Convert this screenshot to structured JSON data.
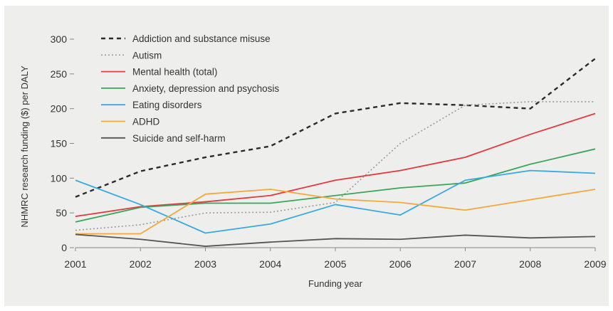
{
  "chart_data": {
    "type": "line",
    "title": "",
    "xlabel": "Funding year",
    "ylabel": "NHMRC research funding ($) per DALY",
    "x": [
      2001,
      2002,
      2003,
      2004,
      2005,
      2006,
      2007,
      2008,
      2009
    ],
    "xticks": [
      "2001",
      "2002",
      "2003",
      "2004",
      "2005",
      "2006",
      "2007",
      "2008",
      "2009"
    ],
    "yticks": [
      "0",
      "50",
      "100",
      "150",
      "200",
      "250",
      "300"
    ],
    "ylim": [
      0,
      300
    ],
    "grid": false,
    "legend_position": "top-left",
    "series": [
      {
        "name": "Addiction and substance misuse",
        "color": "#2b2b2b",
        "style": "dashed",
        "values": [
          73,
          110,
          130,
          146,
          193,
          208,
          205,
          200,
          272
        ]
      },
      {
        "name": "Autism",
        "color": "#9a9a9a",
        "style": "dotted",
        "values": [
          25,
          33,
          50,
          51,
          65,
          150,
          205,
          210,
          210
        ]
      },
      {
        "name": "Mental health (total)",
        "color": "#e23a3f",
        "style": "solid",
        "values": [
          45,
          59,
          66,
          75,
          97,
          111,
          130,
          163,
          193
        ]
      },
      {
        "name": "Anxiety, depression and psychosis",
        "color": "#3aa55a",
        "style": "solid",
        "values": [
          37,
          58,
          64,
          64,
          75,
          86,
          93,
          120,
          142
        ]
      },
      {
        "name": "Eating disorders",
        "color": "#39a9df",
        "style": "solid",
        "values": [
          97,
          62,
          21,
          34,
          62,
          47,
          97,
          111,
          107
        ]
      },
      {
        "name": "ADHD",
        "color": "#f2a93b",
        "style": "solid",
        "values": [
          20,
          20,
          77,
          84,
          70,
          65,
          54,
          69,
          84
        ]
      },
      {
        "name": "Suicide and self-harm",
        "color": "#555555",
        "style": "solid",
        "values": [
          19,
          12,
          2,
          8,
          13,
          12,
          18,
          14,
          16
        ]
      }
    ]
  }
}
